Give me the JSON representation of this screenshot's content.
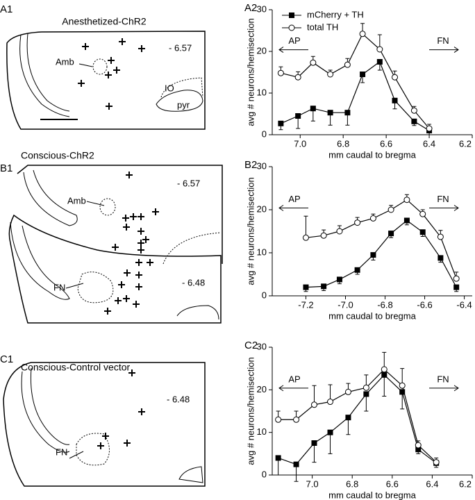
{
  "panels": [
    {
      "label": "A1",
      "title": "Anesthetized-ChR2",
      "texts": [
        "- 6.57",
        "Amb",
        "IO",
        "pyr"
      ]
    },
    {
      "label": "B1",
      "title": "Conscious-ChR2",
      "texts": [
        "- 6.57",
        "Amb",
        "FN",
        "- 6.48"
      ]
    },
    {
      "label": "C1",
      "title": "Conscious-Control vector",
      "texts": [
        "- 6.48",
        "FN"
      ]
    }
  ],
  "chart_data": [
    {
      "type": "line",
      "panel_label": "A2",
      "xlabel": "mm caudal to bregma",
      "ylabel": "avg # neurons/hemisection",
      "x": [
        7.09,
        7.01,
        6.94,
        6.86,
        6.78,
        6.71,
        6.63,
        6.56,
        6.47,
        6.4
      ],
      "xlim": [
        7.13,
        6.2
      ],
      "ylim": [
        0,
        30
      ],
      "xticks": [
        {
          "value": 7,
          "label": "7.0"
        },
        6.8,
        6.6,
        6.4,
        6.2
      ],
      "yticks": [
        0,
        10,
        20,
        30
      ],
      "annotations": [
        "AP",
        "FN"
      ],
      "legend": "upper left",
      "series": [
        {
          "name": "mCherry + TH",
          "color": "#000000",
          "marker": "square",
          "error_direction": "down",
          "values": [
            2.7,
            4.5,
            6.3,
            5.3,
            5.3,
            14.5,
            17.5,
            8.2,
            3.2,
            1
          ],
          "errors": [
            1.5,
            3,
            3,
            3,
            3,
            2,
            2,
            2,
            1,
            1
          ]
        },
        {
          "name": "total TH",
          "color": "#000000",
          "marker": "circle",
          "error_direction": "up",
          "values": [
            14.8,
            13.8,
            17.3,
            14.5,
            16.8,
            24.2,
            20.5,
            13.8,
            5.8,
            1.5
          ],
          "errors": [
            1.5,
            1.3,
            1.5,
            1,
            1.5,
            2.5,
            3.5,
            1.5,
            1,
            1
          ]
        }
      ]
    },
    {
      "type": "line",
      "panel_label": "B2",
      "xlabel": "mm caudal to bregma",
      "ylabel": "avg # neurons/hemisection",
      "x": [
        -7.2,
        -7.11,
        -7.03,
        -6.94,
        -6.86,
        -6.77,
        -6.69,
        -6.61,
        -6.52,
        -6.44
      ],
      "xlim": [
        -7.37,
        -6.36
      ],
      "ylim": [
        0,
        30
      ],
      "xticks": [
        -7.2,
        {
          "value": -7,
          "label": "-7.0"
        },
        -6.8,
        -6.6,
        -6.4
      ],
      "yticks": [
        0,
        10,
        20,
        30
      ],
      "annotations": [
        "AP",
        "FN"
      ],
      "series": [
        {
          "color": "#000000",
          "marker": "square",
          "error_direction": "down",
          "values": [
            2,
            2.2,
            3.8,
            6,
            9.5,
            14.5,
            17.5,
            14.8,
            8.8,
            2
          ],
          "errors": [
            1,
            1,
            1,
            1,
            1.2,
            1,
            1,
            1,
            1,
            1
          ]
        },
        {
          "color": "#000000",
          "marker": "circle",
          "error_direction": "up",
          "values": [
            13.5,
            14,
            15,
            17,
            18,
            20,
            22.3,
            19,
            13.7,
            4
          ],
          "errors": [
            5,
            1.3,
            1.3,
            1.2,
            1,
            1,
            1.2,
            1,
            1.5,
            1.5
          ]
        }
      ]
    },
    {
      "type": "line",
      "panel_label": "C2",
      "xlabel": "mm caudal to bregma",
      "ylabel": "avg # neurons/hemisection",
      "x": [
        7.17,
        7.08,
        6.99,
        6.91,
        6.82,
        6.73,
        6.64,
        6.55,
        6.47,
        6.38
      ],
      "xlim": [
        7.2,
        6.2
      ],
      "ylim": [
        0,
        30
      ],
      "xticks": [
        {
          "value": 7,
          "label": "7.0"
        },
        6.8,
        6.6,
        6.4,
        6.2
      ],
      "yticks": [
        0,
        10,
        20,
        30
      ],
      "annotations": [
        "AP",
        "FN"
      ],
      "series": [
        {
          "color": "#000000",
          "marker": "square",
          "error_direction": "down",
          "values": [
            4,
            2.5,
            7.5,
            10,
            13.5,
            19,
            23.5,
            19.5,
            6,
            2.8
          ],
          "errors": [
            4,
            4,
            4.5,
            5,
            4,
            4,
            5,
            4,
            1,
            1
          ]
        },
        {
          "color": "#000000",
          "marker": "circle",
          "error_direction": "up",
          "values": [
            13,
            13,
            16.5,
            17.2,
            19.5,
            20.5,
            24.8,
            21,
            7,
            3
          ],
          "errors": [
            2,
            2,
            4.5,
            4,
            2,
            3,
            4,
            4,
            1,
            1
          ]
        }
      ]
    }
  ]
}
